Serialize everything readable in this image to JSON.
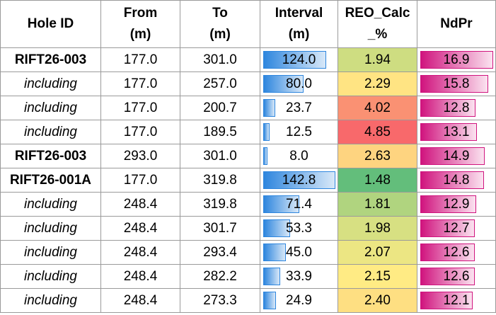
{
  "table": {
    "header": [
      [
        "Hole ID"
      ],
      [
        "From",
        "(m)"
      ],
      [
        "To",
        "(m)"
      ],
      [
        "Interval",
        "(m)"
      ],
      [
        "REO_Calc",
        "_%"
      ],
      [
        "NdPr"
      ]
    ],
    "rows": [
      [
        "RIFT26-003",
        "177.0",
        "301.0",
        "124.0",
        "1.94",
        "16.9"
      ],
      [
        "including",
        "177.0",
        "257.0",
        "80.0",
        "2.29",
        "15.8"
      ],
      [
        "including",
        "177.0",
        "200.7",
        "23.7",
        "4.02",
        "12.8"
      ],
      [
        "including",
        "177.0",
        "189.5",
        "12.5",
        "4.85",
        "13.1"
      ],
      [
        "RIFT26-003",
        "293.0",
        "301.0",
        "8.0",
        "2.63",
        "14.9"
      ],
      [
        "RIFT26-001A",
        "177.0",
        "319.8",
        "142.8",
        "1.48",
        "14.8"
      ],
      [
        "including",
        "248.4",
        "319.8",
        "71.4",
        "1.81",
        "12.9"
      ],
      [
        "including",
        "248.4",
        "301.7",
        "53.3",
        "1.98",
        "12.7"
      ],
      [
        "including",
        "248.4",
        "293.4",
        "45.0",
        "2.07",
        "12.6"
      ],
      [
        "including",
        "248.4",
        "282.2",
        "33.9",
        "2.15",
        "12.6"
      ],
      [
        "including",
        "248.4",
        "273.3",
        "24.9",
        "2.40",
        "12.1"
      ]
    ]
  }
}
